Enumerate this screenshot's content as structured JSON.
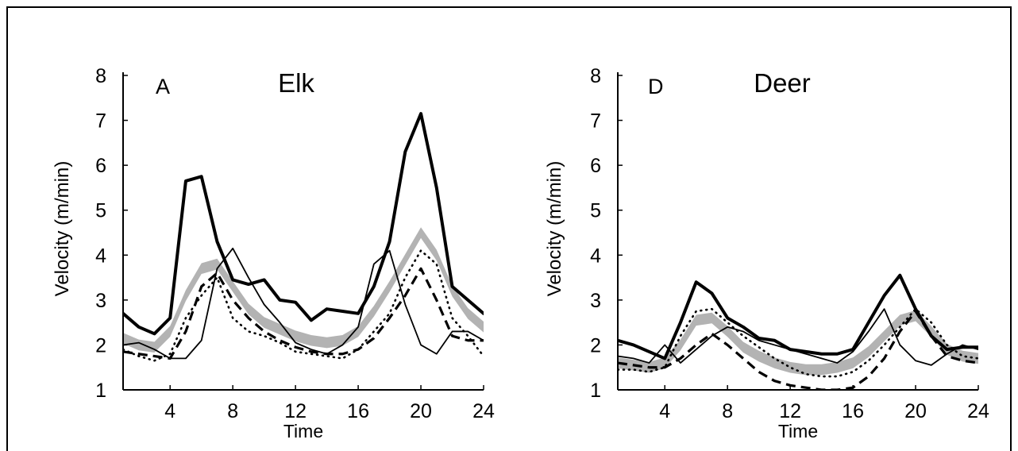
{
  "chart_data": [
    {
      "type": "line",
      "panel_letter": "A",
      "title": "Elk",
      "xlabel": "Time",
      "ylabel": "Velocity (m/min)",
      "xlim": [
        1,
        24
      ],
      "ylim": [
        1,
        8
      ],
      "xticks": [
        4,
        8,
        12,
        16,
        20,
        24
      ],
      "yticks": [
        1,
        2,
        3,
        4,
        5,
        6,
        7,
        8
      ],
      "grid": false,
      "series": [
        {
          "style": "band",
          "color": "#b3b3b3",
          "x": [
            1,
            2,
            3,
            4,
            5,
            6,
            7,
            8,
            9,
            10,
            11,
            12,
            13,
            14,
            15,
            16,
            17,
            18,
            19,
            20,
            21,
            22,
            23,
            24
          ],
          "y": [
            2.15,
            2.0,
            1.95,
            2.3,
            3.1,
            3.7,
            3.8,
            3.3,
            2.8,
            2.5,
            2.35,
            2.2,
            2.1,
            2.05,
            2.1,
            2.3,
            2.75,
            3.3,
            3.9,
            4.5,
            4.0,
            3.2,
            2.7,
            2.4
          ],
          "halfwidth": 0.12
        },
        {
          "style": "thick-solid",
          "color": "#000000",
          "x": [
            1,
            2,
            3,
            4,
            5,
            6,
            7,
            8,
            9,
            10,
            11,
            12,
            13,
            14,
            15,
            16,
            17,
            18,
            19,
            20,
            21,
            22,
            23,
            24
          ],
          "y": [
            2.7,
            2.4,
            2.25,
            2.6,
            5.65,
            5.75,
            4.3,
            3.45,
            3.35,
            3.45,
            3.0,
            2.95,
            2.55,
            2.8,
            2.75,
            2.7,
            3.3,
            4.3,
            6.3,
            7.15,
            5.5,
            3.3,
            3.0,
            2.7
          ]
        },
        {
          "style": "thin-solid",
          "color": "#000000",
          "x": [
            1,
            2,
            3,
            4,
            5,
            6,
            7,
            8,
            9,
            10,
            11,
            12,
            13,
            14,
            15,
            16,
            17,
            18,
            19,
            20,
            21,
            22,
            23,
            24
          ],
          "y": [
            2.0,
            2.05,
            1.9,
            1.7,
            1.7,
            2.1,
            3.7,
            4.15,
            3.5,
            2.9,
            2.5,
            2.05,
            1.9,
            1.8,
            2.0,
            2.4,
            3.8,
            4.1,
            2.9,
            2.0,
            1.8,
            2.3,
            2.3,
            2.1
          ]
        },
        {
          "style": "dashed",
          "color": "#000000",
          "x": [
            1,
            2,
            3,
            4,
            5,
            6,
            7,
            8,
            9,
            10,
            11,
            12,
            13,
            14,
            15,
            16,
            17,
            18,
            19,
            20,
            21,
            22,
            23,
            24
          ],
          "y": [
            1.85,
            1.8,
            1.75,
            1.7,
            2.3,
            3.3,
            3.6,
            3.0,
            2.6,
            2.3,
            2.1,
            1.95,
            1.85,
            1.8,
            1.8,
            1.9,
            2.15,
            2.6,
            3.1,
            3.7,
            3.0,
            2.2,
            2.1,
            2.1
          ]
        },
        {
          "style": "dotted",
          "color": "#000000",
          "x": [
            1,
            2,
            3,
            4,
            5,
            6,
            7,
            8,
            9,
            10,
            11,
            12,
            13,
            14,
            15,
            16,
            17,
            18,
            19,
            20,
            21,
            22,
            23,
            24
          ],
          "y": [
            1.9,
            1.75,
            1.65,
            1.8,
            2.6,
            3.1,
            3.5,
            2.6,
            2.3,
            2.2,
            2.05,
            1.85,
            1.8,
            1.75,
            1.7,
            1.9,
            2.3,
            2.7,
            3.5,
            4.1,
            3.8,
            2.6,
            2.2,
            1.75
          ]
        }
      ]
    },
    {
      "type": "line",
      "panel_letter": "D",
      "title": "Deer",
      "xlabel": "Time",
      "ylabel": "Velocity (m/min)",
      "xlim": [
        1,
        24
      ],
      "ylim": [
        1,
        8
      ],
      "xticks": [
        4,
        8,
        12,
        16,
        20,
        24
      ],
      "yticks": [
        1,
        2,
        3,
        4,
        5,
        6,
        7,
        8
      ],
      "grid": false,
      "series": [
        {
          "style": "band",
          "color": "#b3b3b3",
          "x": [
            1,
            2,
            3,
            4,
            5,
            6,
            7,
            8,
            9,
            10,
            11,
            12,
            13,
            14,
            15,
            16,
            17,
            18,
            19,
            20,
            21,
            22,
            23,
            24
          ],
          "y": [
            1.6,
            1.55,
            1.5,
            1.6,
            2.0,
            2.55,
            2.6,
            2.3,
            1.95,
            1.75,
            1.6,
            1.5,
            1.45,
            1.45,
            1.5,
            1.6,
            1.85,
            2.2,
            2.55,
            2.65,
            2.3,
            1.9,
            1.75,
            1.7
          ],
          "halfwidth": 0.12
        },
        {
          "style": "thick-solid",
          "color": "#000000",
          "x": [
            1,
            2,
            3,
            4,
            5,
            6,
            7,
            8,
            9,
            10,
            11,
            12,
            13,
            14,
            15,
            16,
            17,
            18,
            19,
            20,
            21,
            22,
            23,
            24
          ],
          "y": [
            2.1,
            2.0,
            1.85,
            1.7,
            2.5,
            3.4,
            3.15,
            2.6,
            2.4,
            2.15,
            2.1,
            1.9,
            1.85,
            1.8,
            1.8,
            1.9,
            2.5,
            3.1,
            3.55,
            2.8,
            2.2,
            1.9,
            1.95,
            1.95
          ]
        },
        {
          "style": "thin-solid",
          "color": "#000000",
          "x": [
            1,
            2,
            3,
            4,
            5,
            6,
            7,
            8,
            9,
            10,
            11,
            12,
            13,
            14,
            15,
            16,
            17,
            18,
            19,
            20,
            21,
            22,
            23,
            24
          ],
          "y": [
            1.75,
            1.7,
            1.6,
            2.0,
            1.6,
            1.9,
            2.2,
            2.4,
            2.3,
            2.1,
            2.0,
            1.9,
            1.8,
            1.7,
            1.6,
            1.85,
            2.3,
            2.8,
            2.0,
            1.65,
            1.55,
            1.8,
            2.0,
            1.9
          ]
        },
        {
          "style": "dashed",
          "color": "#000000",
          "x": [
            1,
            2,
            3,
            4,
            5,
            6,
            7,
            8,
            9,
            10,
            11,
            12,
            13,
            14,
            15,
            16,
            17,
            18,
            19,
            20,
            21,
            22,
            23,
            24
          ],
          "y": [
            1.6,
            1.55,
            1.5,
            1.5,
            1.7,
            2.0,
            2.25,
            2.0,
            1.7,
            1.4,
            1.2,
            1.1,
            1.05,
            1.0,
            1.0,
            1.05,
            1.3,
            1.7,
            2.3,
            2.75,
            2.2,
            1.75,
            1.65,
            1.6
          ]
        },
        {
          "style": "dotted",
          "color": "#000000",
          "x": [
            1,
            2,
            3,
            4,
            5,
            6,
            7,
            8,
            9,
            10,
            11,
            12,
            13,
            14,
            15,
            16,
            17,
            18,
            19,
            20,
            21,
            22,
            23,
            24
          ],
          "y": [
            1.45,
            1.45,
            1.4,
            1.5,
            2.2,
            2.75,
            2.8,
            2.5,
            2.2,
            1.95,
            1.7,
            1.5,
            1.35,
            1.3,
            1.3,
            1.4,
            1.65,
            2.0,
            2.4,
            2.8,
            2.5,
            2.0,
            1.75,
            1.7
          ]
        }
      ]
    }
  ]
}
